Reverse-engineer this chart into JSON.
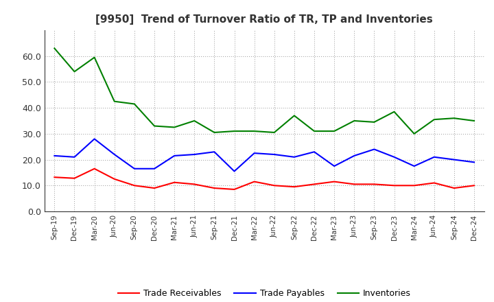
{
  "title": "[9950]  Trend of Turnover Ratio of TR, TP and Inventories",
  "x_labels": [
    "Sep-19",
    "Dec-19",
    "Mar-20",
    "Jun-20",
    "Sep-20",
    "Dec-20",
    "Mar-21",
    "Jun-21",
    "Sep-21",
    "Dec-21",
    "Mar-22",
    "Jun-22",
    "Sep-22",
    "Dec-22",
    "Mar-23",
    "Jun-23",
    "Sep-23",
    "Dec-23",
    "Mar-24",
    "Jun-24",
    "Sep-24",
    "Dec-24"
  ],
  "trade_receivables": [
    13.2,
    12.8,
    16.5,
    12.5,
    10.0,
    9.0,
    11.2,
    10.5,
    9.0,
    8.5,
    11.5,
    10.0,
    9.5,
    10.5,
    11.5,
    10.5,
    10.5,
    10.0,
    10.0,
    11.0,
    9.0,
    10.0
  ],
  "trade_payables": [
    21.5,
    21.0,
    28.0,
    22.0,
    16.5,
    16.5,
    21.5,
    22.0,
    23.0,
    15.5,
    22.5,
    22.0,
    21.0,
    23.0,
    17.5,
    21.5,
    24.0,
    21.0,
    17.5,
    21.0,
    20.0,
    19.0
  ],
  "inventories": [
    63.0,
    54.0,
    59.5,
    42.5,
    41.5,
    33.0,
    32.5,
    35.0,
    30.5,
    31.0,
    31.0,
    30.5,
    37.0,
    31.0,
    31.0,
    35.0,
    34.5,
    38.5,
    30.0,
    35.5,
    36.0,
    35.0
  ],
  "tr_color": "#ff0000",
  "tp_color": "#0000ff",
  "inv_color": "#008000",
  "ylim": [
    0,
    70
  ],
  "yticks": [
    0.0,
    10.0,
    20.0,
    30.0,
    40.0,
    50.0,
    60.0
  ],
  "title_color": "#333333",
  "background_color": "#ffffff",
  "grid_color": "#999999",
  "legend_labels": [
    "Trade Receivables",
    "Trade Payables",
    "Inventories"
  ]
}
